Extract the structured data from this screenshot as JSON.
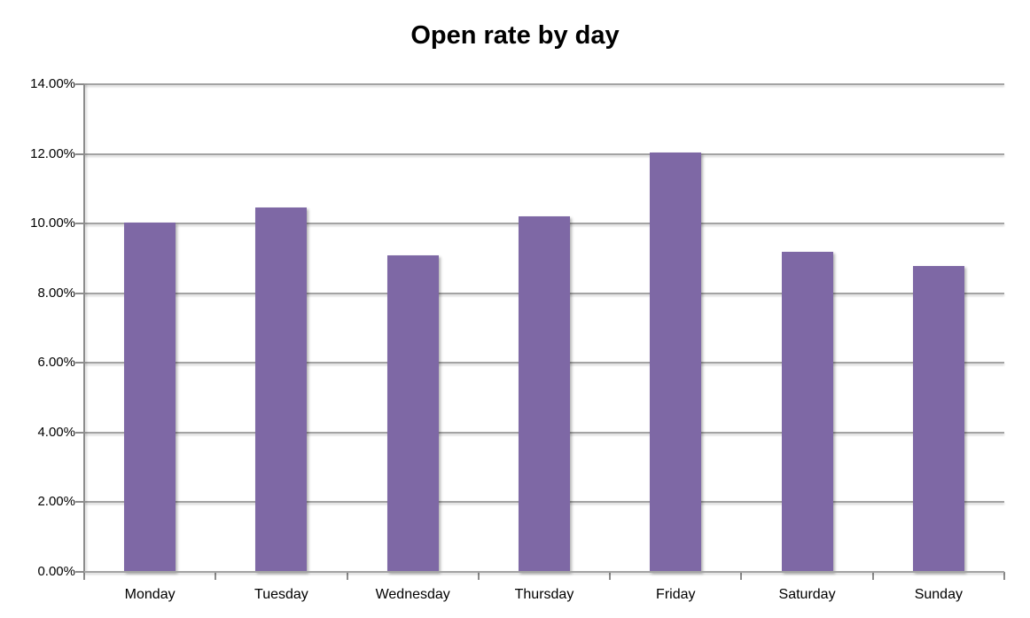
{
  "chart_data": {
    "type": "bar",
    "title": "Open rate by day",
    "categories": [
      "Monday",
      "Tuesday",
      "Wednesday",
      "Thursday",
      "Friday",
      "Saturday",
      "Sunday"
    ],
    "values": [
      10.03,
      10.45,
      9.1,
      10.2,
      12.05,
      9.19,
      8.77
    ],
    "value_unit": "%",
    "xlabel": "",
    "ylabel": "",
    "ylim": [
      0,
      14
    ],
    "ytick_step": 2,
    "ytick_labels": [
      "0.00%",
      "2.00%",
      "4.00%",
      "6.00%",
      "8.00%",
      "10.00%",
      "12.00%",
      "14.00%"
    ],
    "grid": true,
    "legend": "none",
    "colors": {
      "bar": "#7E68A5",
      "gridline": "#A3A3A3",
      "axis": "#8C8C8C",
      "text": "#000000",
      "background": "#FFFFFF"
    }
  }
}
